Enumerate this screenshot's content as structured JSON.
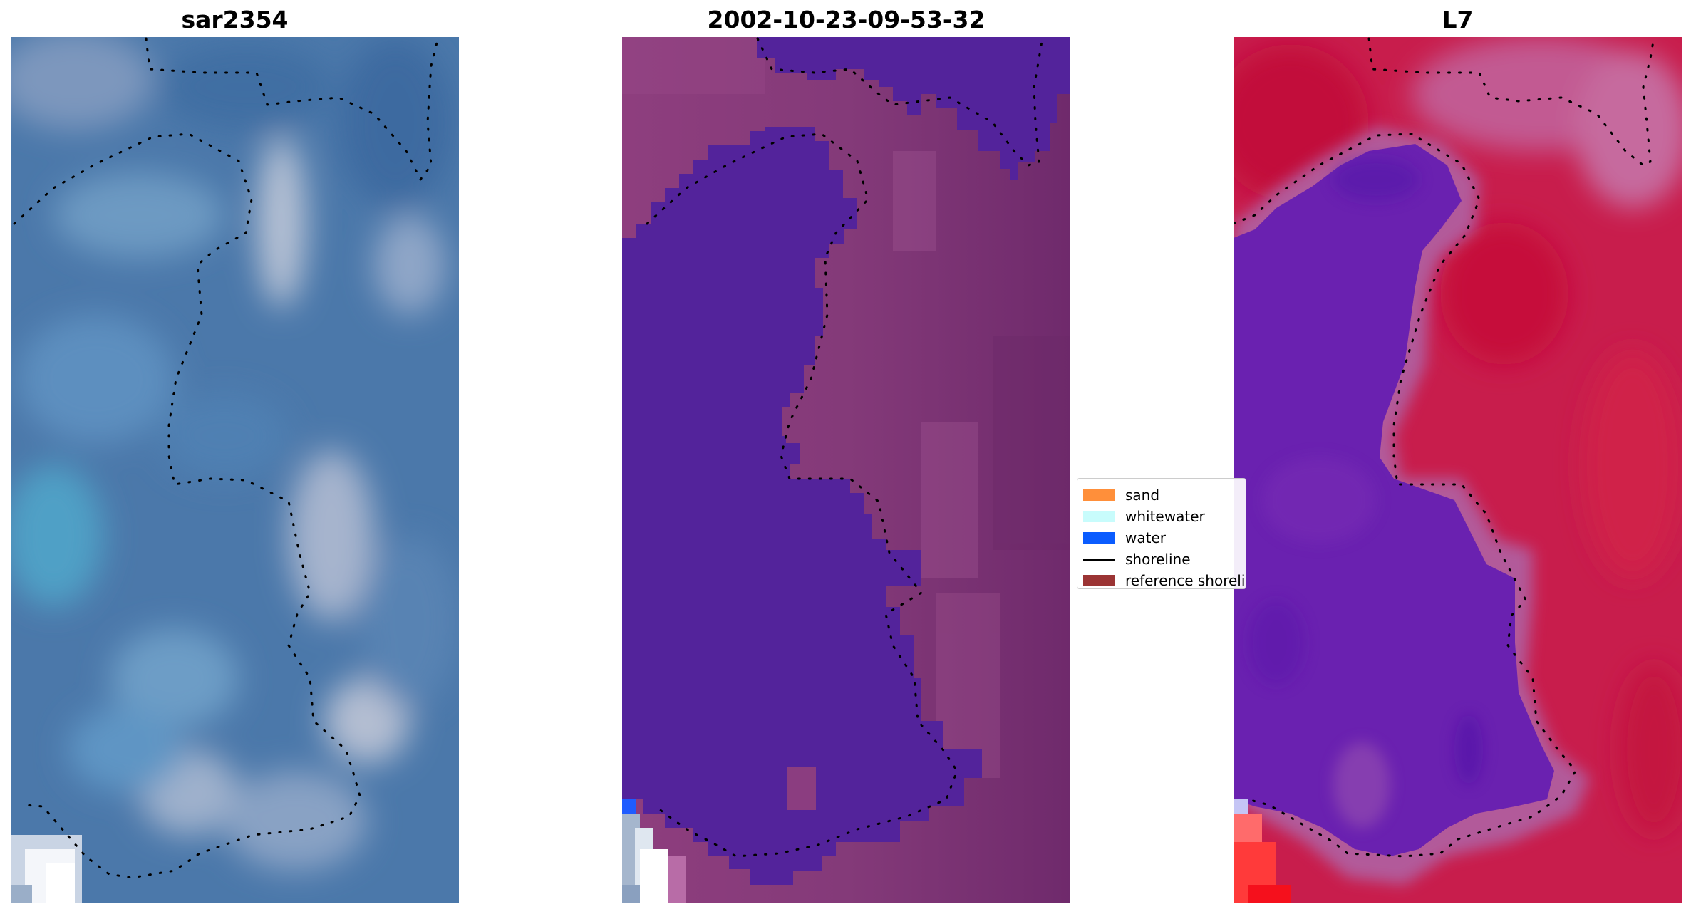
{
  "panels": [
    {
      "title": "sar2354"
    },
    {
      "title": "2002-10-23-09-53-32"
    },
    {
      "title": "L7"
    }
  ],
  "legend": {
    "items": [
      {
        "label": "sand",
        "kind": "patch",
        "color": "#ff8f3a"
      },
      {
        "label": "whitewater",
        "kind": "patch",
        "color": "#c8fcfc"
      },
      {
        "label": "water",
        "kind": "patch",
        "color": "#0a5cff"
      },
      {
        "label": "shoreline",
        "kind": "line",
        "color": "#000000"
      },
      {
        "label": "reference shoreline",
        "kind": "patch",
        "color": "#9b3434"
      }
    ]
  },
  "colors": {
    "sar_base": "#4a76a8",
    "class_water": "#53239b",
    "class_land": "#7b3374",
    "l7_water": "#6a1fb0",
    "l7_land": "#c81a46"
  }
}
